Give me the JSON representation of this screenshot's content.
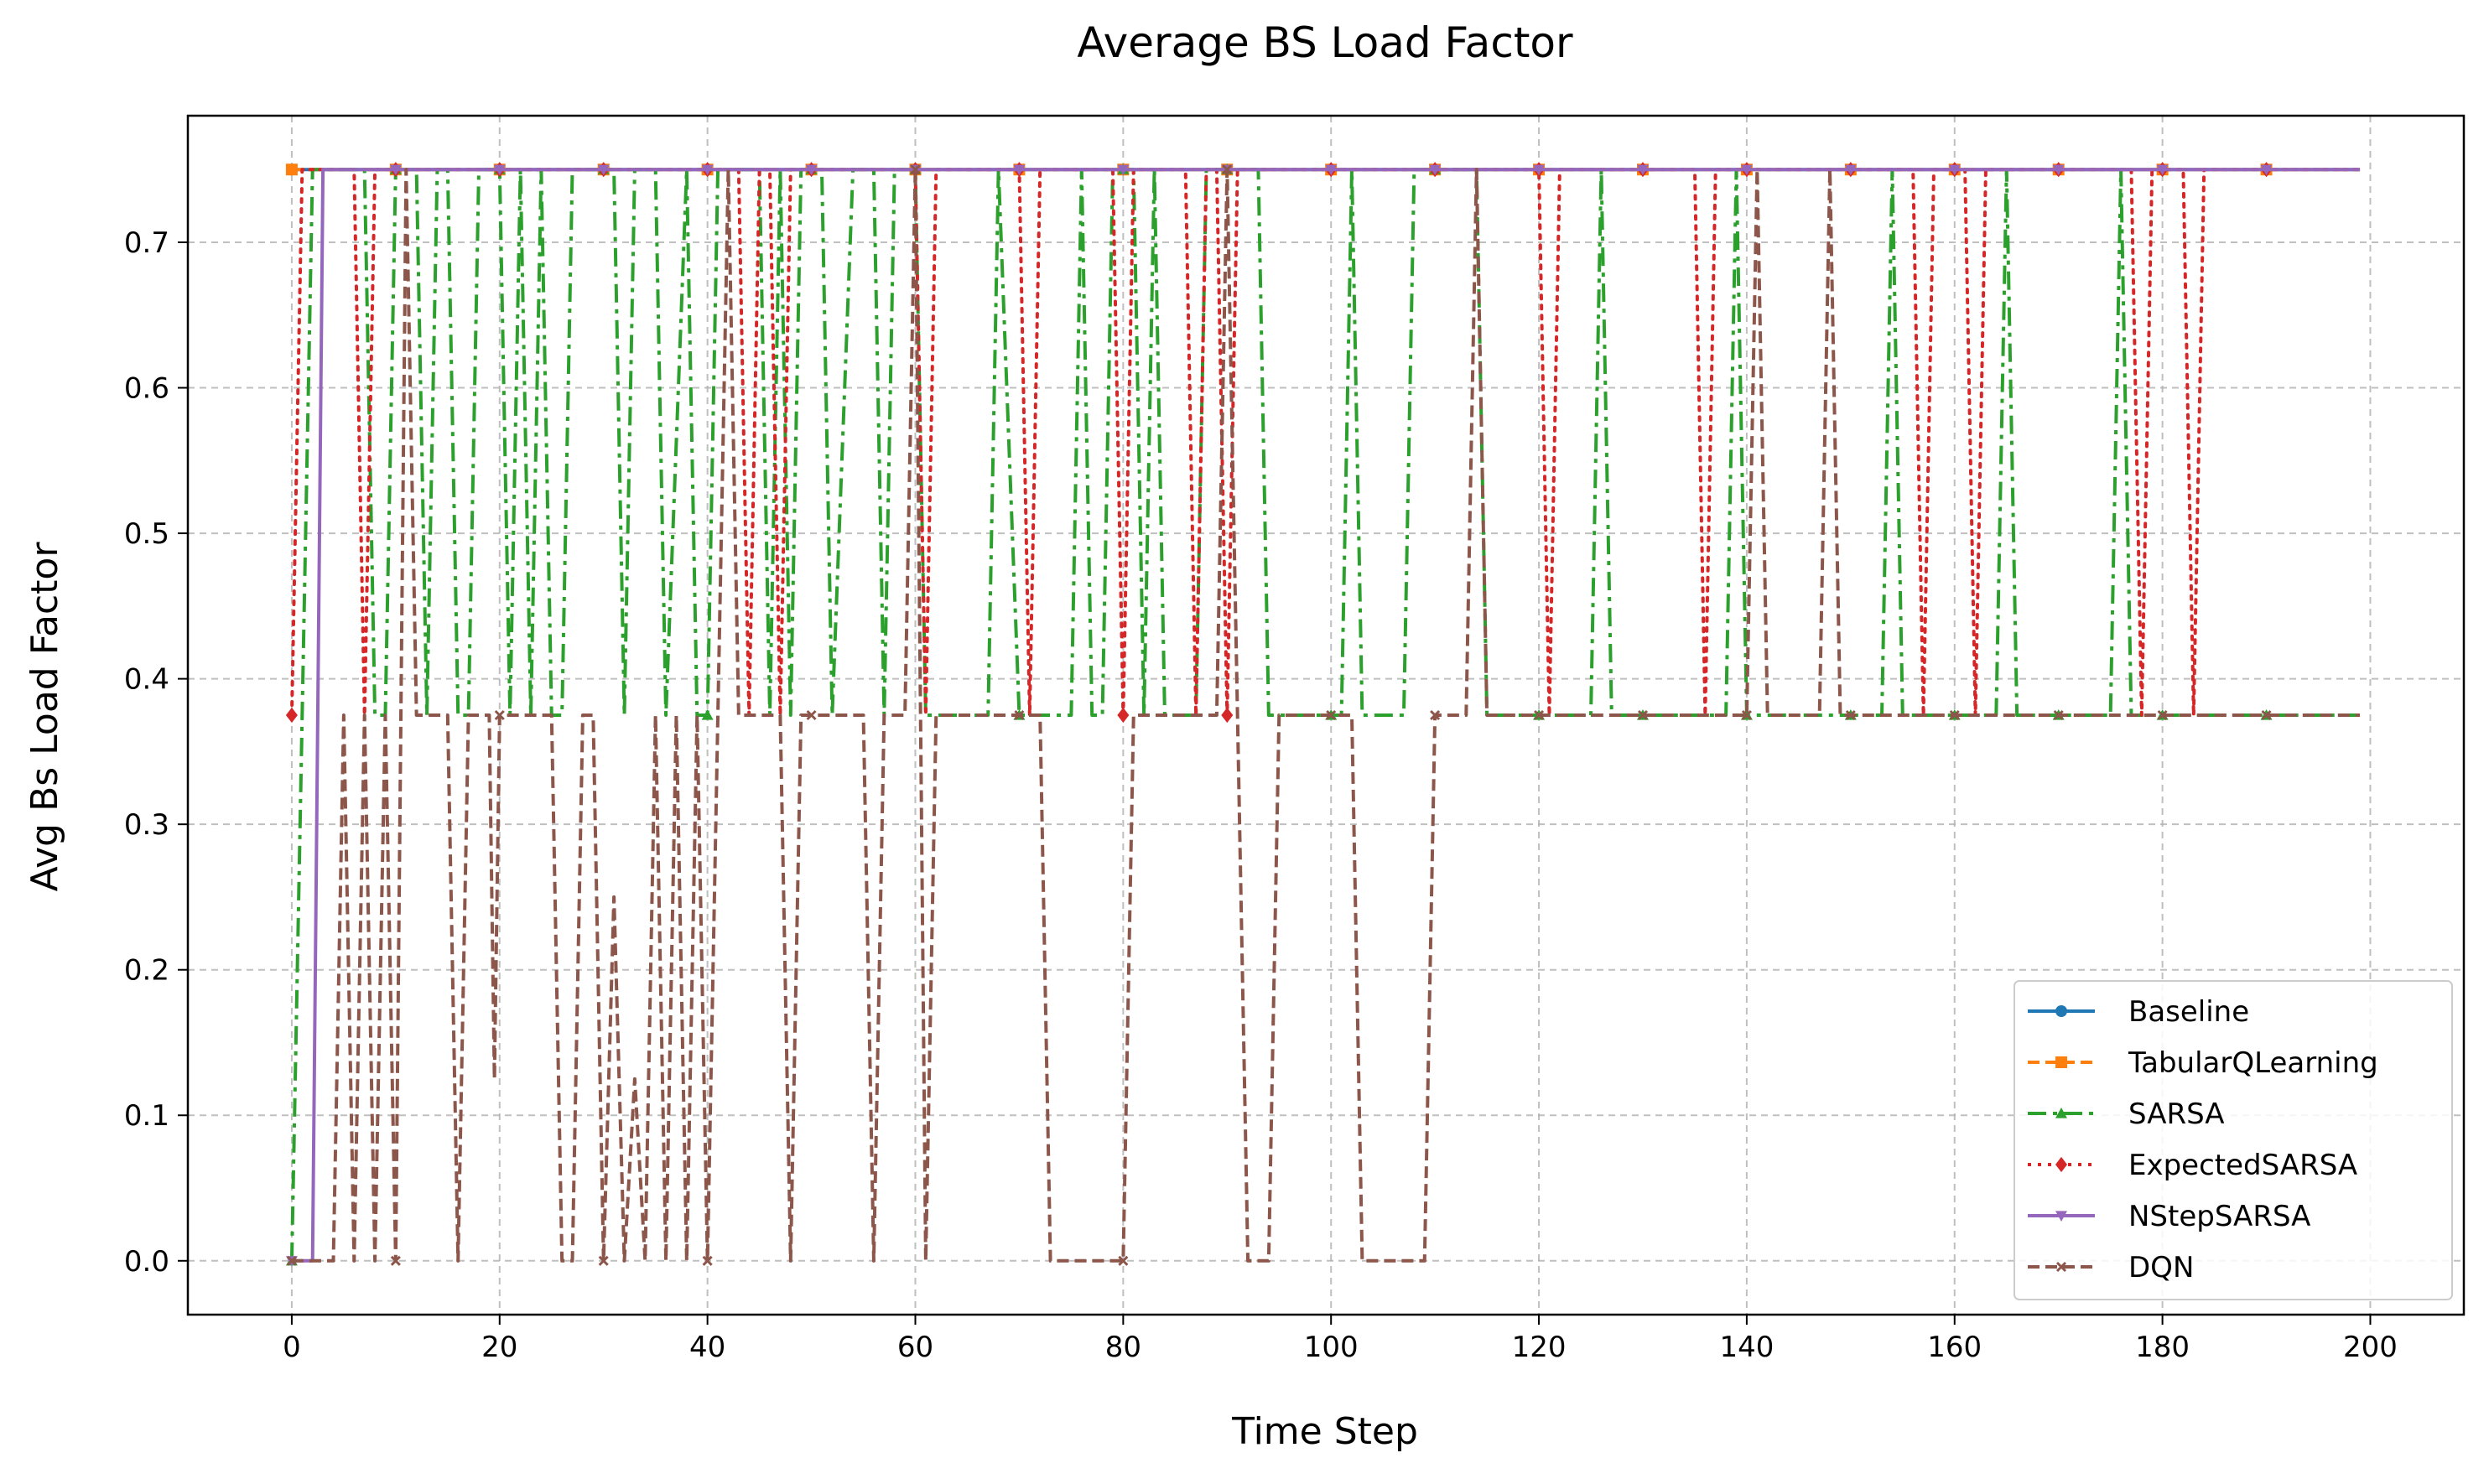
{
  "chart_data": {
    "type": "line",
    "title": "Average BS Load Factor",
    "xlabel": "Time Step",
    "ylabel": "Avg Bs Load Factor",
    "xlim": [
      -10,
      209
    ],
    "ylim": [
      -0.037,
      0.787
    ],
    "xticks": [
      0,
      20,
      40,
      60,
      80,
      100,
      120,
      140,
      160,
      180,
      200
    ],
    "yticks": [
      0.0,
      0.1,
      0.2,
      0.3,
      0.4,
      0.5,
      0.6,
      0.7
    ],
    "ytick_labels": [
      "0.0",
      "0.1",
      "0.2",
      "0.3",
      "0.4",
      "0.5",
      "0.6",
      "0.7"
    ],
    "grid": true,
    "legend_position": "lower-right",
    "series": [
      {
        "name": "Baseline",
        "color": "#1f77b4",
        "style": "solid",
        "marker": "circle",
        "points": [
          [
            0,
            0.75
          ],
          [
            199,
            0.75
          ]
        ]
      },
      {
        "name": "TabularQLearning",
        "color": "#ff7f0e",
        "style": "dashed",
        "marker": "square",
        "points": [
          [
            0,
            0.75
          ],
          [
            199,
            0.75
          ]
        ]
      },
      {
        "name": "SARSA",
        "color": "#2ca02c",
        "style": "dashdot",
        "marker": "triangle-up",
        "points": [
          [
            0,
            0.0
          ],
          [
            1,
            0.375
          ],
          [
            2,
            0.75
          ],
          [
            7,
            0.75
          ],
          [
            8,
            0.375
          ],
          [
            9,
            0.375
          ],
          [
            10,
            0.75
          ],
          [
            12,
            0.75
          ],
          [
            13,
            0.375
          ],
          [
            14,
            0.75
          ],
          [
            15,
            0.75
          ],
          [
            16,
            0.375
          ],
          [
            17,
            0.375
          ],
          [
            18,
            0.75
          ],
          [
            20,
            0.75
          ],
          [
            21,
            0.375
          ],
          [
            22,
            0.75
          ],
          [
            23,
            0.375
          ],
          [
            24,
            0.75
          ],
          [
            25,
            0.375
          ],
          [
            26,
            0.375
          ],
          [
            27,
            0.75
          ],
          [
            31,
            0.75
          ],
          [
            32,
            0.375
          ],
          [
            33,
            0.75
          ],
          [
            35,
            0.75
          ],
          [
            36,
            0.375
          ],
          [
            38,
            0.75
          ],
          [
            39,
            0.375
          ],
          [
            40,
            0.375
          ],
          [
            41,
            0.75
          ],
          [
            45,
            0.75
          ],
          [
            46,
            0.375
          ],
          [
            47,
            0.75
          ],
          [
            48,
            0.375
          ],
          [
            49,
            0.75
          ],
          [
            51,
            0.75
          ],
          [
            52,
            0.375
          ],
          [
            54,
            0.75
          ],
          [
            56,
            0.75
          ],
          [
            57,
            0.375
          ],
          [
            58,
            0.75
          ],
          [
            60,
            0.75
          ],
          [
            61,
            0.375
          ],
          [
            67,
            0.375
          ],
          [
            68,
            0.75
          ],
          [
            70,
            0.375
          ],
          [
            75,
            0.375
          ],
          [
            76,
            0.75
          ],
          [
            77,
            0.375
          ],
          [
            78,
            0.375
          ],
          [
            79,
            0.75
          ],
          [
            81,
            0.75
          ],
          [
            82,
            0.375
          ],
          [
            83,
            0.75
          ],
          [
            84,
            0.375
          ],
          [
            87,
            0.375
          ],
          [
            88,
            0.75
          ],
          [
            93,
            0.75
          ],
          [
            94,
            0.375
          ],
          [
            101,
            0.375
          ],
          [
            102,
            0.75
          ],
          [
            103,
            0.375
          ],
          [
            107,
            0.375
          ],
          [
            108,
            0.75
          ],
          [
            114,
            0.75
          ],
          [
            115,
            0.375
          ],
          [
            125,
            0.375
          ],
          [
            126,
            0.75
          ],
          [
            127,
            0.375
          ],
          [
            138,
            0.375
          ],
          [
            139,
            0.75
          ],
          [
            140,
            0.375
          ],
          [
            153,
            0.375
          ],
          [
            154,
            0.75
          ],
          [
            155,
            0.375
          ],
          [
            164,
            0.375
          ],
          [
            165,
            0.75
          ],
          [
            166,
            0.375
          ],
          [
            175,
            0.375
          ],
          [
            176,
            0.75
          ],
          [
            177,
            0.375
          ],
          [
            199,
            0.375
          ]
        ]
      },
      {
        "name": "ExpectedSARSA",
        "color": "#d62728",
        "style": "dotted",
        "marker": "diamond",
        "points": [
          [
            0,
            0.375
          ],
          [
            1,
            0.75
          ],
          [
            6,
            0.75
          ],
          [
            7,
            0.375
          ],
          [
            8,
            0.75
          ],
          [
            43,
            0.75
          ],
          [
            44,
            0.375
          ],
          [
            45,
            0.75
          ],
          [
            46,
            0.75
          ],
          [
            47,
            0.375
          ],
          [
            48,
            0.75
          ],
          [
            60,
            0.75
          ],
          [
            61,
            0.375
          ],
          [
            62,
            0.75
          ],
          [
            70,
            0.75
          ],
          [
            71,
            0.375
          ],
          [
            72,
            0.75
          ],
          [
            79,
            0.75
          ],
          [
            80,
            0.375
          ],
          [
            81,
            0.75
          ],
          [
            86,
            0.75
          ],
          [
            87,
            0.375
          ],
          [
            88,
            0.75
          ],
          [
            89,
            0.75
          ],
          [
            90,
            0.375
          ],
          [
            91,
            0.75
          ],
          [
            120,
            0.75
          ],
          [
            121,
            0.375
          ],
          [
            122,
            0.75
          ],
          [
            135,
            0.75
          ],
          [
            136,
            0.375
          ],
          [
            137,
            0.75
          ],
          [
            156,
            0.75
          ],
          [
            157,
            0.375
          ],
          [
            158,
            0.75
          ],
          [
            161,
            0.75
          ],
          [
            162,
            0.375
          ],
          [
            163,
            0.75
          ],
          [
            177,
            0.75
          ],
          [
            178,
            0.375
          ],
          [
            179,
            0.75
          ],
          [
            182,
            0.75
          ],
          [
            183,
            0.375
          ],
          [
            184,
            0.75
          ],
          [
            199,
            0.75
          ]
        ]
      },
      {
        "name": "NStepSARSA",
        "color": "#9467bd",
        "style": "solid",
        "marker": "triangle-down",
        "points": [
          [
            0,
            0.0
          ],
          [
            2,
            0.0
          ],
          [
            3,
            0.75
          ],
          [
            199,
            0.75
          ]
        ]
      },
      {
        "name": "DQN",
        "color": "#8c564b",
        "style": "dashed",
        "marker": "x",
        "points": [
          [
            0,
            0.0
          ],
          [
            4,
            0.0
          ],
          [
            5,
            0.375
          ],
          [
            6,
            0.0
          ],
          [
            7,
            0.375
          ],
          [
            8,
            0.0
          ],
          [
            9,
            0.375
          ],
          [
            10,
            0.0
          ],
          [
            11,
            0.75
          ],
          [
            12,
            0.375
          ],
          [
            15,
            0.375
          ],
          [
            16,
            0.0
          ],
          [
            17,
            0.375
          ],
          [
            19,
            0.375
          ],
          [
            19.5,
            0.125
          ],
          [
            20,
            0.375
          ],
          [
            25,
            0.375
          ],
          [
            26,
            0.0
          ],
          [
            27,
            0.0
          ],
          [
            28,
            0.375
          ],
          [
            29,
            0.375
          ],
          [
            30,
            0.0
          ],
          [
            31,
            0.25
          ],
          [
            32,
            0.0
          ],
          [
            33,
            0.125
          ],
          [
            34,
            0.0
          ],
          [
            35,
            0.375
          ],
          [
            36,
            0.0
          ],
          [
            37,
            0.375
          ],
          [
            38,
            0.0
          ],
          [
            39,
            0.375
          ],
          [
            40,
            0.0
          ],
          [
            41,
            0.375
          ],
          [
            42,
            0.75
          ],
          [
            43,
            0.375
          ],
          [
            47,
            0.375
          ],
          [
            48,
            0.0
          ],
          [
            49,
            0.375
          ],
          [
            55,
            0.375
          ],
          [
            56,
            0.0
          ],
          [
            57,
            0.375
          ],
          [
            59,
            0.375
          ],
          [
            60,
            0.75
          ],
          [
            61,
            0.0
          ],
          [
            62,
            0.375
          ],
          [
            72,
            0.375
          ],
          [
            73,
            0.0
          ],
          [
            80,
            0.0
          ],
          [
            81,
            0.375
          ],
          [
            89,
            0.375
          ],
          [
            90,
            0.75
          ],
          [
            91,
            0.375
          ],
          [
            92,
            0.0
          ],
          [
            94,
            0.0
          ],
          [
            95,
            0.375
          ],
          [
            102,
            0.375
          ],
          [
            103,
            0.0
          ],
          [
            109,
            0.0
          ],
          [
            110,
            0.375
          ],
          [
            113,
            0.375
          ],
          [
            114,
            0.75
          ],
          [
            115,
            0.375
          ],
          [
            140,
            0.375
          ],
          [
            141,
            0.75
          ],
          [
            142,
            0.375
          ],
          [
            147,
            0.375
          ],
          [
            148,
            0.75
          ],
          [
            149,
            0.375
          ],
          [
            199,
            0.375
          ]
        ]
      }
    ]
  }
}
